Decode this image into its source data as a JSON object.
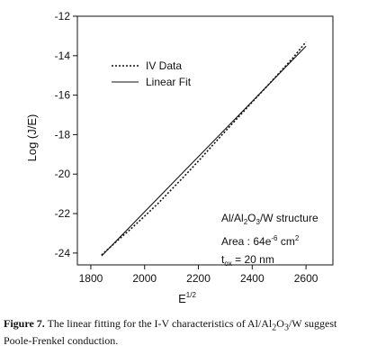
{
  "chart_data": {
    "type": "line",
    "xlabel": "E",
    "xlabel_sup": "1/2",
    "ylabel": "Log (J/E)",
    "xlim": [
      1750,
      2700
    ],
    "ylim": [
      -24.6,
      -12
    ],
    "x_ticks": [
      1800,
      2000,
      2200,
      2400,
      2600
    ],
    "y_ticks": [
      -24,
      -22,
      -20,
      -18,
      -16,
      -14,
      -12
    ],
    "grid": false,
    "legend_position": "top-left",
    "series": [
      {
        "name": "IV Data",
        "style": "dotted",
        "x": [
          1840,
          1900,
          1950,
          2000,
          2050,
          2100,
          2150,
          2200,
          2250,
          2300,
          2350,
          2400,
          2450,
          2500,
          2550,
          2600
        ],
        "y": [
          -24.1,
          -23.36,
          -22.76,
          -22.13,
          -21.48,
          -20.78,
          -20.07,
          -19.34,
          -18.58,
          -17.83,
          -17.09,
          -16.35,
          -15.62,
          -14.88,
          -14.13,
          -13.3
        ]
      },
      {
        "name": "Linear Fit",
        "style": "solid",
        "x": [
          1840,
          2600
        ],
        "y": [
          -24.15,
          -13.52
        ]
      }
    ],
    "annotations": {
      "structure_prefix": "Al/Al",
      "structure_sub1": "2",
      "structure_mid": "O",
      "structure_sub2": "3",
      "structure_suffix": "/W structure",
      "area_prefix": "Area :  64e",
      "area_sup1": "-6",
      "area_mid": " cm",
      "area_sup2": "2",
      "tox_prefix": "t",
      "tox_sub": "ox",
      "tox_suffix": " = 20 nm"
    }
  },
  "caption": {
    "label": "Figure 7.",
    "text_part1": " The linear fitting for the I-V characteristics of Al/Al",
    "sub1": "2",
    "text_part2": "O",
    "sub2": "3",
    "text_part3": "/W suggest Poole-Frenkel conduction."
  }
}
